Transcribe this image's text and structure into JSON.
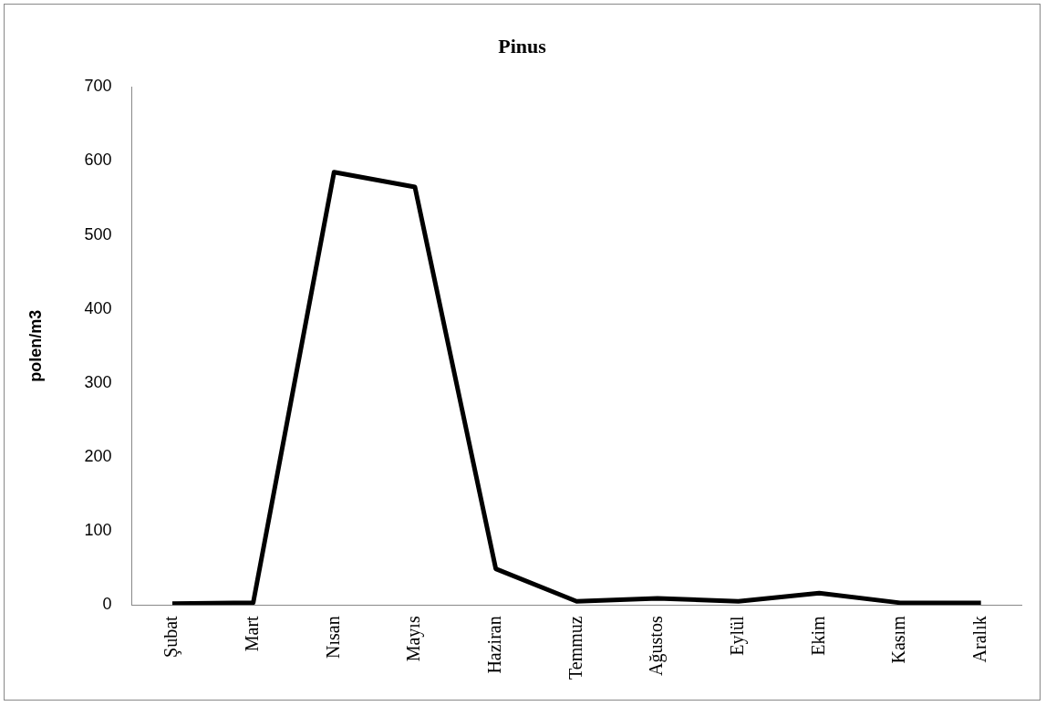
{
  "chart_data": {
    "type": "line",
    "title": "Pinus",
    "ylabel": "polen/m3",
    "categories": [
      "Şubat",
      "Mart",
      "Nısan",
      "Mayıs",
      "Haziran",
      "Temmuz",
      "Ağustos",
      "Eylül",
      "Ekim",
      "Kasım",
      "Aralık"
    ],
    "series": [
      {
        "color": "#000000",
        "values": [
          2,
          3,
          585,
          565,
          49,
          5,
          9,
          5,
          16,
          3,
          3
        ]
      }
    ],
    "ylim": [
      0,
      700
    ],
    "yticks": [
      0,
      100,
      200,
      300,
      400,
      500,
      600,
      700
    ],
    "grid": false,
    "legend": false,
    "marker": "none",
    "line_style": "solid"
  }
}
